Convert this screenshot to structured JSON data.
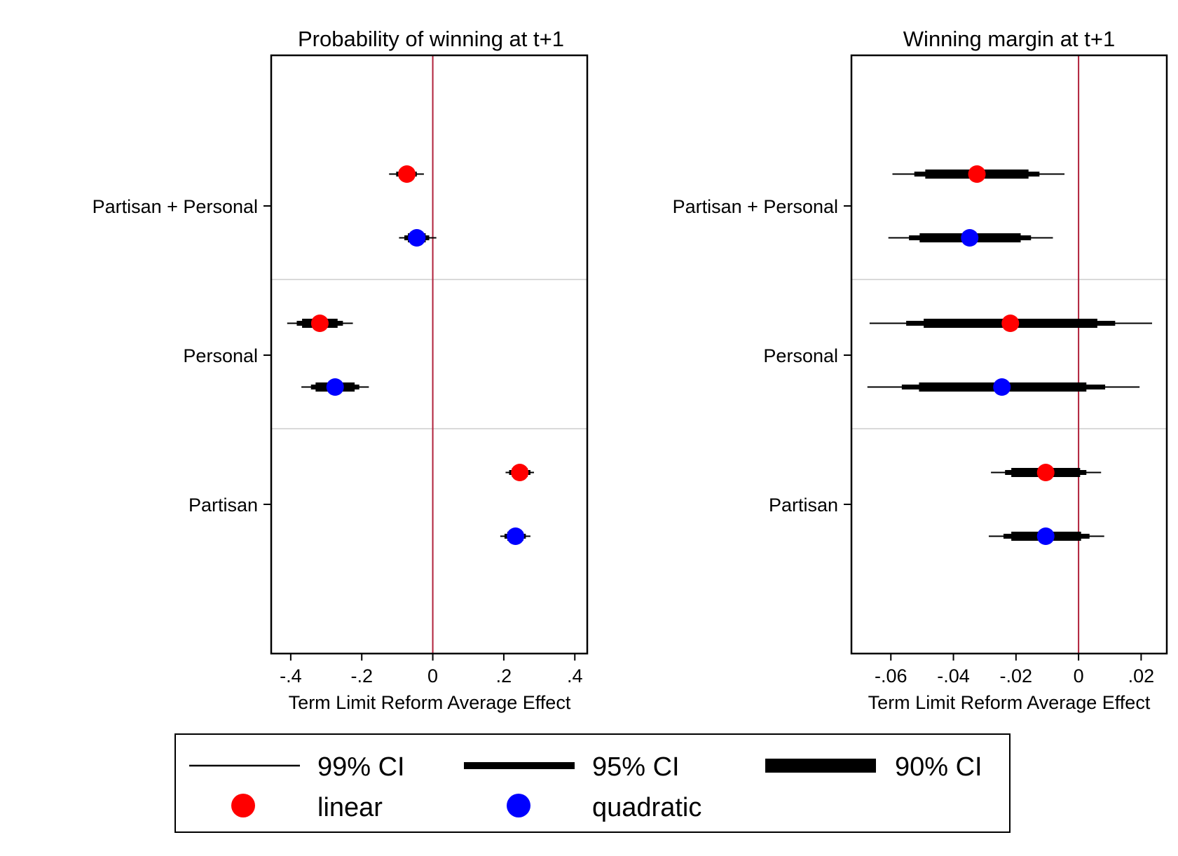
{
  "chart_data": [
    {
      "type": "scatter",
      "title": "Probability of winning at t+1",
      "xlabel": "Term Limit Reform Average Effect",
      "ylabel": "",
      "xlim": [
        -0.455,
        0.435
      ],
      "xticks": [
        {
          "value": -0.4,
          "label": "-.4"
        },
        {
          "value": -0.2,
          "label": "-.2"
        },
        {
          "value": 0,
          "label": "0"
        },
        {
          "value": 0.2,
          "label": ".2"
        },
        {
          "value": 0.4,
          "label": ".4"
        }
      ],
      "reference_line": 0,
      "categories": [
        "Partisan + Personal",
        "Personal",
        "Partisan"
      ],
      "series": [
        {
          "name": "linear",
          "color": "#ff0000",
          "points": [
            {
              "category": "Partisan + Personal",
              "estimate": -0.073,
              "ci90": [
                -0.095,
                -0.053
              ],
              "ci95": [
                -0.103,
                -0.045
              ],
              "ci99": [
                -0.123,
                -0.025
              ]
            },
            {
              "category": "Personal",
              "estimate": -0.318,
              "ci90": [
                -0.368,
                -0.268
              ],
              "ci95": [
                -0.383,
                -0.253
              ],
              "ci99": [
                -0.41,
                -0.225
              ]
            },
            {
              "category": "Partisan",
              "estimate": 0.245,
              "ci90": [
                0.223,
                0.267
              ],
              "ci95": [
                0.215,
                0.275
              ],
              "ci99": [
                0.205,
                0.285
              ]
            }
          ]
        },
        {
          "name": "quadratic",
          "color": "#0000ff",
          "points": [
            {
              "category": "Partisan + Personal",
              "estimate": -0.045,
              "ci90": [
                -0.07,
                -0.02
              ],
              "ci95": [
                -0.08,
                -0.01
              ],
              "ci99": [
                -0.095,
                0.01
              ]
            },
            {
              "category": "Personal",
              "estimate": -0.275,
              "ci90": [
                -0.33,
                -0.22
              ],
              "ci95": [
                -0.343,
                -0.207
              ],
              "ci99": [
                -0.37,
                -0.18
              ]
            },
            {
              "category": "Partisan",
              "estimate": 0.233,
              "ci90": [
                0.21,
                0.255
              ],
              "ci95": [
                0.202,
                0.262
              ],
              "ci99": [
                0.19,
                0.275
              ]
            }
          ]
        }
      ]
    },
    {
      "type": "scatter",
      "title": "Winning margin at t+1",
      "xlabel": "Term Limit Reform Average Effect",
      "ylabel": "",
      "xlim": [
        -0.0726,
        0.0282
      ],
      "xticks": [
        {
          "value": -0.06,
          "label": "-.06"
        },
        {
          "value": -0.04,
          "label": "-.04"
        },
        {
          "value": -0.02,
          "label": "-.02"
        },
        {
          "value": 0,
          "label": "0"
        },
        {
          "value": 0.02,
          "label": ".02"
        }
      ],
      "reference_line": 0,
      "categories": [
        "Partisan + Personal",
        "Personal",
        "Partisan"
      ],
      "series": [
        {
          "name": "linear",
          "color": "#ff0000",
          "points": [
            {
              "category": "Partisan + Personal",
              "estimate": -0.0325,
              "ci90": [
                -0.049,
                -0.016
              ],
              "ci95": [
                -0.0525,
                -0.0125
              ],
              "ci99": [
                -0.0595,
                -0.0045
              ]
            },
            {
              "category": "Personal",
              "estimate": -0.0218,
              "ci90": [
                -0.0495,
                0.006
              ],
              "ci95": [
                -0.0551,
                0.0117
              ],
              "ci99": [
                -0.0668,
                0.0235
              ]
            },
            {
              "category": "Partisan",
              "estimate": -0.0105,
              "ci90": [
                -0.0215,
                0.0005
              ],
              "ci95": [
                -0.0235,
                0.0025
              ],
              "ci99": [
                -0.028,
                0.0072
              ]
            }
          ]
        },
        {
          "name": "quadratic",
          "color": "#0000ff",
          "points": [
            {
              "category": "Partisan + Personal",
              "estimate": -0.0348,
              "ci90": [
                -0.0508,
                -0.0185
              ],
              "ci95": [
                -0.0542,
                -0.0152
              ],
              "ci99": [
                -0.0608,
                -0.0082
              ]
            },
            {
              "category": "Personal",
              "estimate": -0.0245,
              "ci90": [
                -0.051,
                0.0025
              ],
              "ci95": [
                -0.0565,
                0.0085
              ],
              "ci99": [
                -0.0675,
                0.0195
              ]
            },
            {
              "category": "Partisan",
              "estimate": -0.0105,
              "ci90": [
                -0.0215,
                0.0008
              ],
              "ci95": [
                -0.024,
                0.0035
              ],
              "ci99": [
                -0.0287,
                0.0082
              ]
            }
          ]
        }
      ]
    }
  ],
  "legend": {
    "ci_items": [
      {
        "label": "99% CI",
        "width": "thin"
      },
      {
        "label": "95% CI",
        "width": "medium"
      },
      {
        "label": "90% CI",
        "width": "thick"
      }
    ],
    "marker_items": [
      {
        "label": "linear",
        "color": "#ff0000"
      },
      {
        "label": "quadratic",
        "color": "#0000ff"
      }
    ]
  },
  "colors": {
    "reference_line": "#b0203a",
    "separator": "#d9d9d9",
    "ci": "#000000"
  }
}
